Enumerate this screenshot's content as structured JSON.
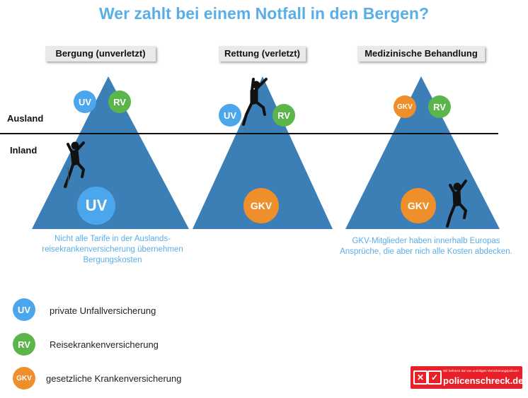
{
  "title": "Wer zahlt bei einem Notfall in den Bergen?",
  "headers": {
    "bergung": "Bergung (unverletzt)",
    "rettung": "Rettung (verletzt)",
    "medizin": "Medizinische Behandlung"
  },
  "zones": {
    "ausland": "Ausland",
    "inland": "Inland"
  },
  "badges": {
    "uv": "UV",
    "rv": "RV",
    "gkv": "GKV"
  },
  "notes": {
    "bergung": [
      "Nicht alle Tarife in der Auslands-",
      "reisekrankenversicherung übernehmen",
      "Bergungskosten"
    ],
    "medizin": [
      "GKV-Mitglieder haben innerhalb Europas",
      "Ansprüche, die aber nich alle Kosten abdecken."
    ]
  },
  "legend": [
    {
      "code": "UV",
      "text": "private Unfallversicherung",
      "color": "#4ca6ec"
    },
    {
      "code": "RV",
      "text": "Reisekrankenversicherung",
      "color": "#5cb54a"
    },
    {
      "code": "GKV",
      "text": "gesetzliche Krankenversicherung",
      "color": "#ef8f2b"
    }
  ],
  "logo": {
    "text": "policenschreck.de",
    "tagline": "Wir befreien Sie von unnötigen Versicherungspolicen!"
  },
  "colors": {
    "mountain": "#3b7fb6",
    "accent": "#5aaee8",
    "uv": "#4ca6ec",
    "rv": "#5cb54a",
    "gkv": "#ef8f2b",
    "logo": "#e8202a"
  }
}
